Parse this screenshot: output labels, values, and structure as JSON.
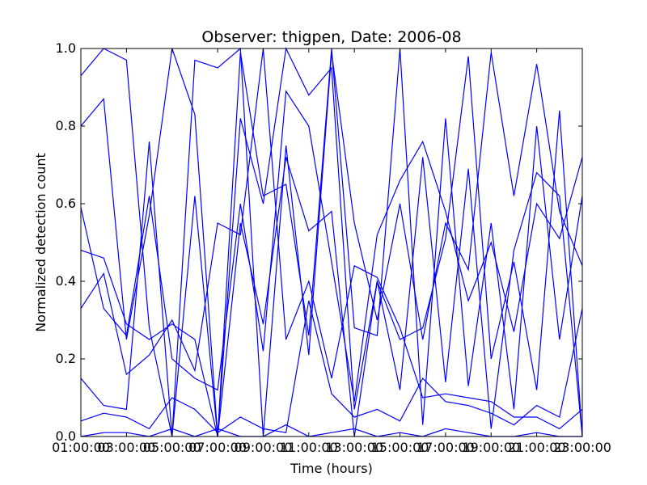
{
  "chart_data": {
    "type": "line",
    "title": "Observer: thigpen, Date: 2006-08",
    "xlabel": "Time (hours)",
    "ylabel": "Normalized detection count",
    "xlim": [
      "01:00:00",
      "23:00:00"
    ],
    "ylim": [
      0,
      1
    ],
    "x_tick_labels": [
      "01:00:00",
      "03:00:00",
      "05:00:00",
      "07:00:00",
      "09:00:00",
      "11:00:00",
      "13:00:00",
      "15:00:00",
      "17:00:00",
      "19:00:00",
      "21:00:00",
      "23:00:00"
    ],
    "y_tick_labels": [
      "0.0",
      "0.2",
      "0.4",
      "0.6",
      "0.8",
      "1.0"
    ],
    "y_ticks": [
      0,
      0.2,
      0.4,
      0.6,
      0.8,
      1.0
    ],
    "grid": false,
    "legend": "none",
    "line_color": "#0000ff",
    "x": [
      "01:00",
      "02:00",
      "03:00",
      "04:00",
      "05:00",
      "06:00",
      "07:00",
      "08:00",
      "09:00",
      "10:00",
      "11:00",
      "12:00",
      "13:00",
      "14:00",
      "15:00",
      "16:00",
      "17:00",
      "18:00",
      "19:00",
      "20:00",
      "21:00",
      "22:00",
      "23:00"
    ],
    "series": [
      {
        "values": [
          0.93,
          1.0,
          0.97,
          0.28,
          0.0,
          0.97,
          0.95,
          1.0,
          0.0,
          0.75,
          0.21,
          0.99,
          0.55,
          0.3,
          0.6,
          0.25,
          0.55,
          0.43,
          0.99,
          0.62,
          0.96,
          0.58,
          0.44
        ]
      },
      {
        "values": [
          0.8,
          0.87,
          0.25,
          0.57,
          1.0,
          0.83,
          0.0,
          0.82,
          0.6,
          1.0,
          0.88,
          0.95,
          0.07,
          0.4,
          0.25,
          0.28,
          0.51,
          0.98,
          0.2,
          0.45,
          0.12,
          0.84,
          0.0
        ]
      },
      {
        "values": [
          0.48,
          0.46,
          0.29,
          0.25,
          0.29,
          0.25,
          0.0,
          0.99,
          0.62,
          0.65,
          0.26,
          1.0,
          0.28,
          0.26,
          1.0,
          0.03,
          0.82,
          0.13,
          0.55,
          0.07,
          0.8,
          0.25,
          0.62
        ]
      },
      {
        "values": [
          0.15,
          0.08,
          0.07,
          0.76,
          0.0,
          0.62,
          0.0,
          0.55,
          0.29,
          0.72,
          0.53,
          0.58,
          0.0,
          0.4,
          0.12,
          0.72,
          0.14,
          0.69,
          0.02,
          0.48,
          0.68,
          0.62,
          0.0
        ]
      },
      {
        "values": [
          0.33,
          0.42,
          0.16,
          0.21,
          0.3,
          0.17,
          0.55,
          0.52,
          1.0,
          0.25,
          0.4,
          0.15,
          0.44,
          0.41,
          0.28,
          0.1,
          0.11,
          0.1,
          0.09,
          0.05,
          0.05,
          0.02,
          0.07
        ]
      },
      {
        "values": [
          0.0,
          0.01,
          0.01,
          0.0,
          0.02,
          0.0,
          0.02,
          0.0,
          0.0,
          0.03,
          0.0,
          0.01,
          0.02,
          0.0,
          0.01,
          0.0,
          0.02,
          0.01,
          0.0,
          0.0,
          0.01,
          0.0,
          0.0
        ]
      },
      {
        "values": [
          0.59,
          0.33,
          0.26,
          0.62,
          0.2,
          0.15,
          0.12,
          0.6,
          0.22,
          0.89,
          0.8,
          0.45,
          0.09,
          0.52,
          0.66,
          0.76,
          0.58,
          0.35,
          0.5,
          0.27,
          0.6,
          0.51,
          0.72
        ]
      },
      {
        "values": [
          0.04,
          0.06,
          0.05,
          0.02,
          0.1,
          0.07,
          0.01,
          0.05,
          0.02,
          0.01,
          0.35,
          0.11,
          0.05,
          0.07,
          0.04,
          0.15,
          0.09,
          0.08,
          0.06,
          0.03,
          0.08,
          0.05,
          0.33
        ]
      }
    ]
  }
}
